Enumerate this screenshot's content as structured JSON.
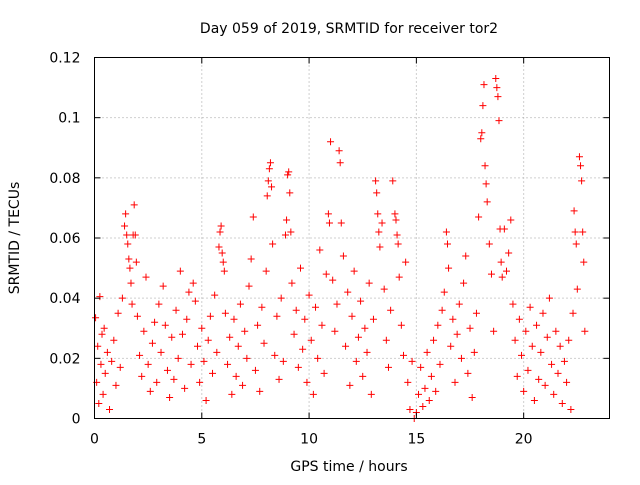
{
  "chart_data": {
    "type": "scatter",
    "title": "Day 059 of 2019, SRMTID for receiver tor2",
    "xlabel": "GPS time / hours",
    "ylabel": "SRMTID / TECUs",
    "xlim": [
      0,
      24
    ],
    "ylim": [
      0,
      0.12
    ],
    "x_ticks": [
      0,
      5,
      10,
      15,
      20
    ],
    "x_tick_labels": [
      "0",
      "5",
      "10",
      "15",
      "20"
    ],
    "y_ticks": [
      0,
      0.02,
      0.04,
      0.06,
      0.08,
      0.1,
      0.12
    ],
    "y_tick_labels": [
      "0",
      "0.02",
      "0.04",
      "0.06",
      "0.08",
      "0.1",
      "0.12"
    ],
    "grid": true,
    "marker": "plus",
    "color": "#ff0000",
    "series": [
      {
        "name": "SRMTID",
        "points": [
          [
            0.05,
            0.0335
          ],
          [
            0.1,
            0.012
          ],
          [
            0.15,
            0.024
          ],
          [
            0.2,
            0.005
          ],
          [
            0.25,
            0.0405
          ],
          [
            0.3,
            0.018
          ],
          [
            0.35,
            0.028
          ],
          [
            0.4,
            0.008
          ],
          [
            0.45,
            0.03
          ],
          [
            0.5,
            0.015
          ],
          [
            0.6,
            0.022
          ],
          [
            0.7,
            0.003
          ],
          [
            0.8,
            0.019
          ],
          [
            0.9,
            0.026
          ],
          [
            1.0,
            0.011
          ],
          [
            1.1,
            0.035
          ],
          [
            1.2,
            0.017
          ],
          [
            1.3,
            0.04
          ],
          [
            1.4,
            0.064
          ],
          [
            1.45,
            0.068
          ],
          [
            1.5,
            0.061
          ],
          [
            1.55,
            0.058
          ],
          [
            1.6,
            0.053
          ],
          [
            1.65,
            0.05
          ],
          [
            1.7,
            0.045
          ],
          [
            1.75,
            0.038
          ],
          [
            1.8,
            0.061
          ],
          [
            1.85,
            0.071
          ],
          [
            1.9,
            0.061
          ],
          [
            1.95,
            0.052
          ],
          [
            2.0,
            0.034
          ],
          [
            2.1,
            0.021
          ],
          [
            2.2,
            0.014
          ],
          [
            2.3,
            0.029
          ],
          [
            2.4,
            0.047
          ],
          [
            2.5,
            0.018
          ],
          [
            2.6,
            0.009
          ],
          [
            2.7,
            0.025
          ],
          [
            2.8,
            0.032
          ],
          [
            2.9,
            0.012
          ],
          [
            3.0,
            0.038
          ],
          [
            3.1,
            0.022
          ],
          [
            3.2,
            0.044
          ],
          [
            3.3,
            0.031
          ],
          [
            3.4,
            0.016
          ],
          [
            3.5,
            0.007
          ],
          [
            3.6,
            0.027
          ],
          [
            3.7,
            0.013
          ],
          [
            3.8,
            0.036
          ],
          [
            3.9,
            0.02
          ],
          [
            4.0,
            0.049
          ],
          [
            4.1,
            0.028
          ],
          [
            4.2,
            0.01
          ],
          [
            4.3,
            0.033
          ],
          [
            4.4,
            0.042
          ],
          [
            4.5,
            0.018
          ],
          [
            4.6,
            0.045
          ],
          [
            4.7,
            0.039
          ],
          [
            4.8,
            0.024
          ],
          [
            4.9,
            0.012
          ],
          [
            5.0,
            0.03
          ],
          [
            5.1,
            0.019
          ],
          [
            5.2,
            0.006
          ],
          [
            5.3,
            0.026
          ],
          [
            5.4,
            0.034
          ],
          [
            5.5,
            0.015
          ],
          [
            5.6,
            0.041
          ],
          [
            5.7,
            0.022
          ],
          [
            5.8,
            0.057
          ],
          [
            5.85,
            0.062
          ],
          [
            5.9,
            0.064
          ],
          [
            5.95,
            0.055
          ],
          [
            6.0,
            0.052
          ],
          [
            6.05,
            0.049
          ],
          [
            6.1,
            0.035
          ],
          [
            6.2,
            0.018
          ],
          [
            6.3,
            0.027
          ],
          [
            6.4,
            0.008
          ],
          [
            6.5,
            0.033
          ],
          [
            6.6,
            0.014
          ],
          [
            6.7,
            0.024
          ],
          [
            6.8,
            0.038
          ],
          [
            6.9,
            0.011
          ],
          [
            7.0,
            0.029
          ],
          [
            7.1,
            0.02
          ],
          [
            7.2,
            0.044
          ],
          [
            7.3,
            0.053
          ],
          [
            7.4,
            0.067
          ],
          [
            7.5,
            0.016
          ],
          [
            7.6,
            0.031
          ],
          [
            7.7,
            0.009
          ],
          [
            7.8,
            0.037
          ],
          [
            7.9,
            0.025
          ],
          [
            8.0,
            0.049
          ],
          [
            8.05,
            0.074
          ],
          [
            8.1,
            0.079
          ],
          [
            8.15,
            0.083
          ],
          [
            8.2,
            0.085
          ],
          [
            8.25,
            0.077
          ],
          [
            8.3,
            0.058
          ],
          [
            8.4,
            0.021
          ],
          [
            8.5,
            0.034
          ],
          [
            8.6,
            0.013
          ],
          [
            8.7,
            0.04
          ],
          [
            8.8,
            0.019
          ],
          [
            8.9,
            0.061
          ],
          [
            8.95,
            0.066
          ],
          [
            9.0,
            0.081
          ],
          [
            9.05,
            0.082
          ],
          [
            9.1,
            0.075
          ],
          [
            9.15,
            0.062
          ],
          [
            9.2,
            0.045
          ],
          [
            9.3,
            0.028
          ],
          [
            9.4,
            0.036
          ],
          [
            9.5,
            0.017
          ],
          [
            9.6,
            0.05
          ],
          [
            9.7,
            0.023
          ],
          [
            9.8,
            0.033
          ],
          [
            9.9,
            0.012
          ],
          [
            10.0,
            0.041
          ],
          [
            10.1,
            0.026
          ],
          [
            10.2,
            0.008
          ],
          [
            10.3,
            0.037
          ],
          [
            10.4,
            0.02
          ],
          [
            10.5,
            0.056
          ],
          [
            10.6,
            0.031
          ],
          [
            10.7,
            0.015
          ],
          [
            10.8,
            0.048
          ],
          [
            10.9,
            0.068
          ],
          [
            10.95,
            0.065
          ],
          [
            11.0,
            0.092
          ],
          [
            11.1,
            0.046
          ],
          [
            11.2,
            0.029
          ],
          [
            11.3,
            0.038
          ],
          [
            11.4,
            0.089
          ],
          [
            11.45,
            0.085
          ],
          [
            11.5,
            0.065
          ],
          [
            11.6,
            0.054
          ],
          [
            11.7,
            0.024
          ],
          [
            11.8,
            0.042
          ],
          [
            11.9,
            0.011
          ],
          [
            12.0,
            0.034
          ],
          [
            12.1,
            0.049
          ],
          [
            12.2,
            0.019
          ],
          [
            12.3,
            0.027
          ],
          [
            12.4,
            0.039
          ],
          [
            12.5,
            0.014
          ],
          [
            12.6,
            0.03
          ],
          [
            12.7,
            0.022
          ],
          [
            12.8,
            0.045
          ],
          [
            12.9,
            0.008
          ],
          [
            13.0,
            0.033
          ],
          [
            13.1,
            0.079
          ],
          [
            13.15,
            0.075
          ],
          [
            13.2,
            0.068
          ],
          [
            13.25,
            0.062
          ],
          [
            13.3,
            0.057
          ],
          [
            13.4,
            0.065
          ],
          [
            13.5,
            0.043
          ],
          [
            13.6,
            0.026
          ],
          [
            13.7,
            0.017
          ],
          [
            13.8,
            0.036
          ],
          [
            13.9,
            0.079
          ],
          [
            14.0,
            0.068
          ],
          [
            14.05,
            0.066
          ],
          [
            14.1,
            0.061
          ],
          [
            14.15,
            0.058
          ],
          [
            14.2,
            0.047
          ],
          [
            14.3,
            0.031
          ],
          [
            14.4,
            0.021
          ],
          [
            14.5,
            0.052
          ],
          [
            14.6,
            0.012
          ],
          [
            14.7,
            0.003
          ],
          [
            14.8,
            0.019
          ],
          [
            14.9,
            0.0
          ],
          [
            15.0,
            0.002
          ],
          [
            15.1,
            0.008
          ],
          [
            15.2,
            0.017
          ],
          [
            15.3,
            0.004
          ],
          [
            15.4,
            0.01
          ],
          [
            15.5,
            0.022
          ],
          [
            15.6,
            0.006
          ],
          [
            15.7,
            0.014
          ],
          [
            15.8,
            0.026
          ],
          [
            15.9,
            0.009
          ],
          [
            16.0,
            0.031
          ],
          [
            16.1,
            0.018
          ],
          [
            16.2,
            0.036
          ],
          [
            16.3,
            0.042
          ],
          [
            16.4,
            0.062
          ],
          [
            16.45,
            0.058
          ],
          [
            16.5,
            0.05
          ],
          [
            16.6,
            0.024
          ],
          [
            16.7,
            0.033
          ],
          [
            16.8,
            0.012
          ],
          [
            16.9,
            0.028
          ],
          [
            17.0,
            0.038
          ],
          [
            17.1,
            0.02
          ],
          [
            17.2,
            0.045
          ],
          [
            17.3,
            0.054
          ],
          [
            17.4,
            0.015
          ],
          [
            17.5,
            0.03
          ],
          [
            17.6,
            0.007
          ],
          [
            17.7,
            0.022
          ],
          [
            17.8,
            0.035
          ],
          [
            17.9,
            0.067
          ],
          [
            18.0,
            0.093
          ],
          [
            18.05,
            0.095
          ],
          [
            18.1,
            0.104
          ],
          [
            18.15,
            0.111
          ],
          [
            18.2,
            0.084
          ],
          [
            18.25,
            0.078
          ],
          [
            18.3,
            0.072
          ],
          [
            18.4,
            0.058
          ],
          [
            18.5,
            0.048
          ],
          [
            18.6,
            0.029
          ],
          [
            18.7,
            0.113
          ],
          [
            18.75,
            0.11
          ],
          [
            18.8,
            0.107
          ],
          [
            18.85,
            0.099
          ],
          [
            18.9,
            0.063
          ],
          [
            18.95,
            0.052
          ],
          [
            19.0,
            0.047
          ],
          [
            19.1,
            0.063
          ],
          [
            19.2,
            0.049
          ],
          [
            19.3,
            0.055
          ],
          [
            19.4,
            0.066
          ],
          [
            19.5,
            0.038
          ],
          [
            19.6,
            0.026
          ],
          [
            19.7,
            0.014
          ],
          [
            19.8,
            0.033
          ],
          [
            19.9,
            0.021
          ],
          [
            20.0,
            0.009
          ],
          [
            20.1,
            0.029
          ],
          [
            20.2,
            0.016
          ],
          [
            20.3,
            0.037
          ],
          [
            20.4,
            0.024
          ],
          [
            20.5,
            0.006
          ],
          [
            20.6,
            0.031
          ],
          [
            20.7,
            0.013
          ],
          [
            20.8,
            0.022
          ],
          [
            20.9,
            0.035
          ],
          [
            21.0,
            0.011
          ],
          [
            21.1,
            0.027
          ],
          [
            21.2,
            0.04
          ],
          [
            21.3,
            0.018
          ],
          [
            21.4,
            0.008
          ],
          [
            21.5,
            0.029
          ],
          [
            21.6,
            0.015
          ],
          [
            21.7,
            0.024
          ],
          [
            21.8,
            0.005
          ],
          [
            21.9,
            0.019
          ],
          [
            22.0,
            0.012
          ],
          [
            22.1,
            0.026
          ],
          [
            22.2,
            0.003
          ],
          [
            22.3,
            0.035
          ],
          [
            22.35,
            0.069
          ],
          [
            22.4,
            0.062
          ],
          [
            22.45,
            0.058
          ],
          [
            22.5,
            0.043
          ],
          [
            22.6,
            0.087
          ],
          [
            22.65,
            0.084
          ],
          [
            22.7,
            0.079
          ],
          [
            22.75,
            0.062
          ],
          [
            22.8,
            0.052
          ],
          [
            22.85,
            0.029
          ]
        ]
      }
    ]
  }
}
